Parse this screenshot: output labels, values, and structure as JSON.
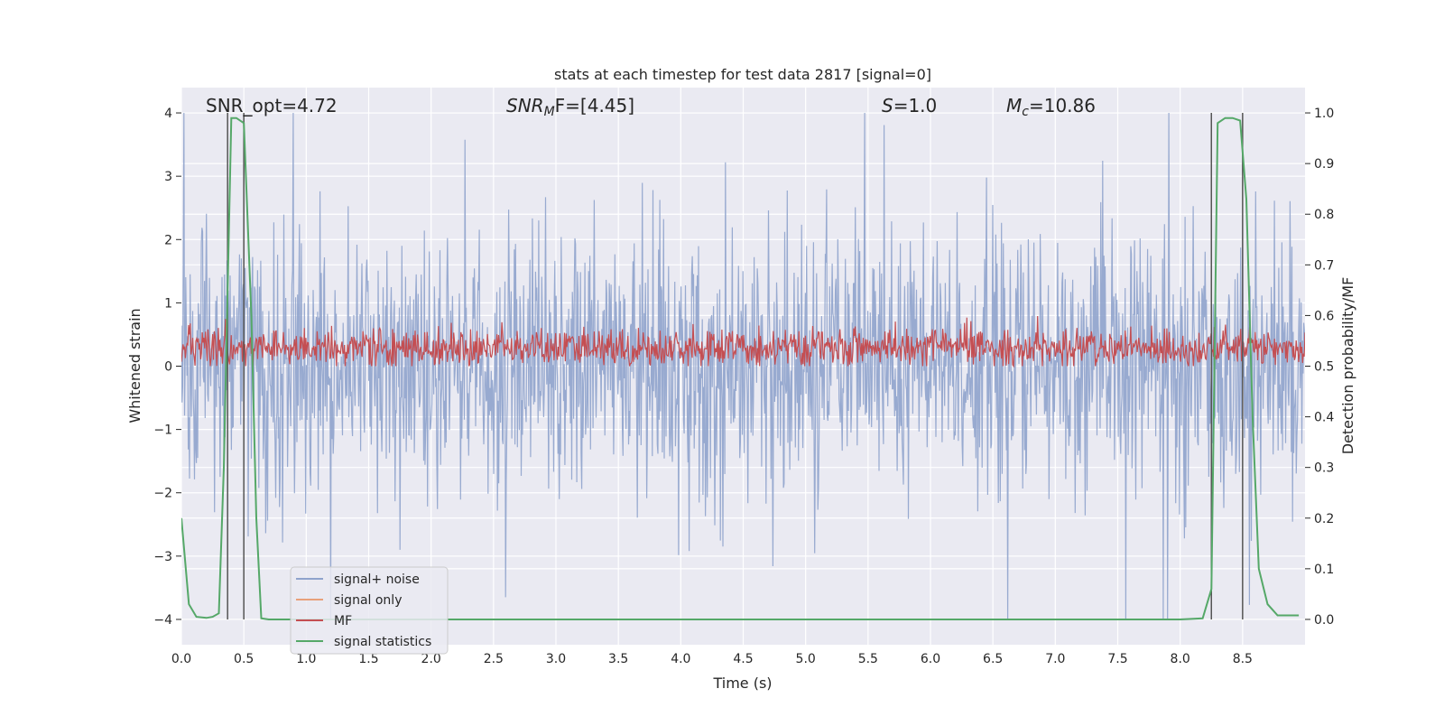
{
  "chart_data": {
    "type": "line",
    "title": "stats at each timestep for test data 2817 [signal=0]",
    "xlabel": "Time (s)",
    "ylabel_left": "Whitened strain",
    "ylabel_right": "Detection probability/MF",
    "xlim": [
      0.0,
      9.0
    ],
    "ylim_left": [
      -4.4,
      4.4
    ],
    "ylim_right": [
      -0.05,
      1.05
    ],
    "x_ticks": [
      "0.0",
      "0.5",
      "1.0",
      "1.5",
      "2.0",
      "2.5",
      "3.0",
      "3.5",
      "4.0",
      "4.5",
      "5.0",
      "5.5",
      "6.0",
      "6.5",
      "7.0",
      "7.5",
      "8.0",
      "8.5"
    ],
    "y_ticks_left": [
      "−4",
      "−3",
      "−2",
      "−1",
      "0",
      "1",
      "2",
      "3",
      "4"
    ],
    "y_ticks_right": [
      "0.0",
      "0.1",
      "0.2",
      "0.3",
      "0.4",
      "0.5",
      "0.6",
      "0.7",
      "0.8",
      "0.9",
      "1.0"
    ],
    "grid": true,
    "annotations": {
      "snr_opt": "SNR_opt=4.72",
      "snr_mf_main": "SNR",
      "snr_mf_sub": "M",
      "snr_mf_rest": "F=[4.45]",
      "s_main": "S",
      "s_rest": "=1.0",
      "mc_main": "M",
      "mc_sub": "c",
      "mc_rest": "=10.86"
    },
    "vertical_lines_s": [
      0.37,
      0.5,
      8.25,
      8.5
    ],
    "series": [
      {
        "name": "signal+ noise",
        "color": "#8fa3cc",
        "axis": "left",
        "description": "noise band approx −2.5..2.5 with spikes to ±4"
      },
      {
        "name": "signal only",
        "color": "#e8a07a",
        "axis": "left"
      },
      {
        "name": "MF",
        "color": "#c44e52",
        "axis": "right",
        "range": [
          0.5,
          0.6
        ]
      },
      {
        "name": "signal statistics",
        "color": "#55a868",
        "axis": "right",
        "x": [
          0.0,
          0.06,
          0.12,
          0.2,
          0.25,
          0.3,
          0.34,
          0.4,
          0.44,
          0.5,
          0.56,
          0.6,
          0.64,
          0.7,
          1.0,
          8.0,
          8.18,
          8.25,
          8.3,
          8.36,
          8.42,
          8.48,
          8.53,
          8.58,
          8.63,
          8.7,
          8.78,
          8.86,
          8.95
        ],
        "y": [
          0.2,
          0.03,
          0.005,
          0.003,
          0.005,
          0.012,
          0.3,
          0.99,
          0.99,
          0.98,
          0.6,
          0.2,
          0.002,
          0.0,
          0.0,
          0.0,
          0.002,
          0.06,
          0.98,
          0.99,
          0.99,
          0.985,
          0.83,
          0.4,
          0.1,
          0.03,
          0.008,
          0.008,
          0.008
        ]
      }
    ],
    "legend": {
      "position": "lower-left",
      "entries": [
        "signal+ noise",
        "signal only",
        "MF",
        "signal statistics"
      ]
    },
    "colors": {
      "background": "#eaeaf2",
      "grid": "#ffffff",
      "vline": "#555555"
    }
  }
}
